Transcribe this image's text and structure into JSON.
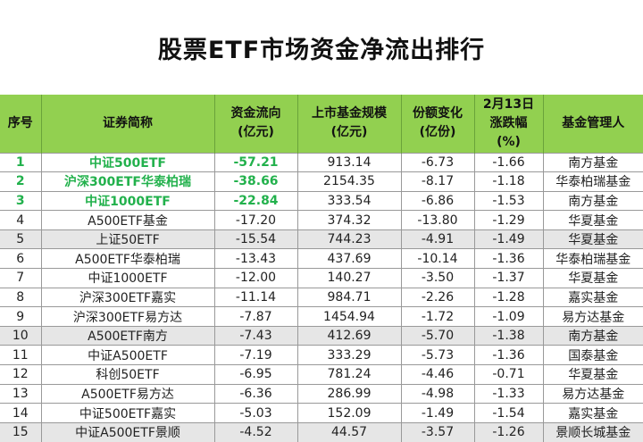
{
  "title": "股票ETF市场资金净流出排行",
  "colors": {
    "header_bg": "#92d050",
    "highlight_text": "#22b14c",
    "alt_row": "#e6e6e6"
  },
  "headers": [
    "序号",
    "证券简称",
    "资金流向\n(亿元)",
    "上市基金规模\n(亿元)",
    "份额变化\n(亿份)",
    "2月13日\n涨跌幅\n(%)",
    "基金管理人"
  ],
  "rows": [
    [
      "1",
      "中证500ETF",
      "-57.21",
      "913.14",
      "-6.73",
      "-1.66",
      "南方基金"
    ],
    [
      "2",
      "沪深300ETF华泰柏瑞",
      "-38.66",
      "2154.35",
      "-8.17",
      "-1.18",
      "华泰柏瑞基金"
    ],
    [
      "3",
      "中证1000ETF",
      "-22.84",
      "333.54",
      "-6.86",
      "-1.53",
      "南方基金"
    ],
    [
      "4",
      "A500ETF基金",
      "-17.20",
      "374.32",
      "-13.80",
      "-1.29",
      "华夏基金"
    ],
    [
      "5",
      "上证50ETF",
      "-15.54",
      "744.23",
      "-4.91",
      "-1.49",
      "华夏基金"
    ],
    [
      "6",
      "A500ETF华泰柏瑞",
      "-13.43",
      "437.69",
      "-10.14",
      "-1.36",
      "华泰柏瑞基金"
    ],
    [
      "7",
      "中证1000ETF",
      "-12.00",
      "140.27",
      "-3.50",
      "-1.37",
      "华夏基金"
    ],
    [
      "8",
      "沪深300ETF嘉实",
      "-11.14",
      "984.71",
      "-2.26",
      "-1.28",
      "嘉实基金"
    ],
    [
      "9",
      "沪深300ETF易方达",
      "-7.87",
      "1454.94",
      "-1.72",
      "-1.09",
      "易方达基金"
    ],
    [
      "10",
      "A500ETF南方",
      "-7.43",
      "412.69",
      "-5.70",
      "-1.38",
      "南方基金"
    ],
    [
      "11",
      "中证A500ETF",
      "-7.19",
      "333.29",
      "-5.73",
      "-1.36",
      "国泰基金"
    ],
    [
      "12",
      "科创50ETF",
      "-6.95",
      "781.24",
      "-4.46",
      "-0.71",
      "华夏基金"
    ],
    [
      "13",
      "A500ETF易方达",
      "-6.36",
      "286.99",
      "-4.98",
      "-1.33",
      "易方达基金"
    ],
    [
      "14",
      "中证500ETF嘉实",
      "-5.03",
      "152.09",
      "-1.49",
      "-1.54",
      "嘉实基金"
    ],
    [
      "15",
      "中证A500ETF景顺",
      "-4.52",
      "44.57",
      "-3.57",
      "-1.26",
      "景顺长城基金"
    ]
  ]
}
